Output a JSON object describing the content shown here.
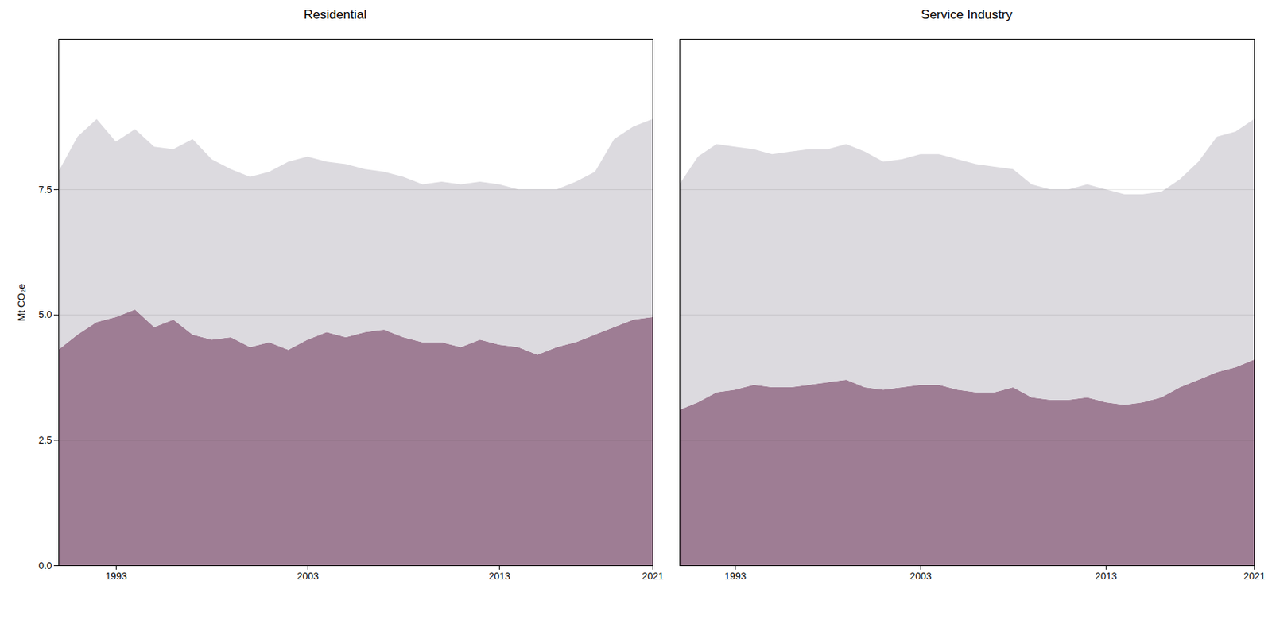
{
  "chart_data": [
    {
      "type": "area",
      "title": "Residential",
      "x": [
        1990,
        1991,
        1992,
        1993,
        1994,
        1995,
        1996,
        1997,
        1998,
        1999,
        2000,
        2001,
        2002,
        2003,
        2004,
        2005,
        2006,
        2007,
        2008,
        2009,
        2010,
        2011,
        2012,
        2013,
        2014,
        2015,
        2016,
        2017,
        2018,
        2019,
        2020,
        2021
      ],
      "series": [
        {
          "color": "#9E7D94",
          "values": [
            4.3,
            4.6,
            4.85,
            4.95,
            5.1,
            4.75,
            4.9,
            4.6,
            4.5,
            4.55,
            4.35,
            4.45,
            4.3,
            4.5,
            4.65,
            4.55,
            4.65,
            4.7,
            4.55,
            4.45,
            4.45,
            4.35,
            4.5,
            4.4,
            4.35,
            4.2,
            4.35,
            4.45,
            4.6,
            4.75,
            4.9,
            4.95
          ]
        },
        {
          "color": "#DCDADF",
          "values": [
            7.85,
            8.55,
            8.9,
            8.45,
            8.7,
            8.35,
            8.3,
            8.5,
            8.1,
            7.9,
            7.75,
            7.85,
            8.05,
            8.15,
            8.05,
            8.0,
            7.9,
            7.85,
            7.75,
            7.6,
            7.65,
            7.6,
            7.65,
            7.6,
            7.5,
            7.5,
            7.5,
            7.65,
            7.85,
            8.5,
            8.75,
            8.9
          ]
        }
      ],
      "xlim": [
        1990,
        2021
      ],
      "xticks": [
        1993,
        2003,
        2013,
        2021
      ],
      "ylim": [
        0,
        10.5
      ],
      "yticks": [
        {
          "value": 0,
          "label": "0.0"
        },
        2.5,
        {
          "value": 5,
          "label": "5.0"
        },
        7.5
      ],
      "ylabel": "Mt CO₂e",
      "grid": "y",
      "stacked": false
    },
    {
      "type": "area",
      "title": "Service Industry",
      "x": [
        1990,
        1991,
        1992,
        1993,
        1994,
        1995,
        1996,
        1997,
        1998,
        1999,
        2000,
        2001,
        2002,
        2003,
        2004,
        2005,
        2006,
        2007,
        2008,
        2009,
        2010,
        2011,
        2012,
        2013,
        2014,
        2015,
        2016,
        2017,
        2018,
        2019,
        2020,
        2021
      ],
      "series": [
        {
          "color": "#9E7D94",
          "values": [
            3.1,
            3.25,
            3.45,
            3.5,
            3.6,
            3.55,
            3.55,
            3.6,
            3.65,
            3.7,
            3.55,
            3.5,
            3.55,
            3.6,
            3.6,
            3.5,
            3.45,
            3.45,
            3.55,
            3.35,
            3.3,
            3.3,
            3.35,
            3.25,
            3.2,
            3.25,
            3.35,
            3.55,
            3.7,
            3.85,
            3.95,
            4.1
          ]
        },
        {
          "color": "#DCDADF",
          "values": [
            7.6,
            8.15,
            8.4,
            8.35,
            8.3,
            8.2,
            8.25,
            8.3,
            8.3,
            8.4,
            8.25,
            8.05,
            8.1,
            8.2,
            8.2,
            8.1,
            8.0,
            7.95,
            7.9,
            7.6,
            7.5,
            7.5,
            7.6,
            7.5,
            7.4,
            7.4,
            7.45,
            7.7,
            8.05,
            8.55,
            8.65,
            8.9
          ]
        }
      ],
      "xlim": [
        1990,
        2021
      ],
      "xticks": [
        1993,
        2003,
        2013,
        2021
      ],
      "ylim": [
        0,
        10.5
      ],
      "yticks": [
        {
          "value": 0,
          "label": "0.0"
        },
        2.5,
        {
          "value": 5,
          "label": "5.0"
        },
        7.5
      ],
      "grid": "y",
      "stacked": false,
      "tick_labels": "x"
    }
  ]
}
